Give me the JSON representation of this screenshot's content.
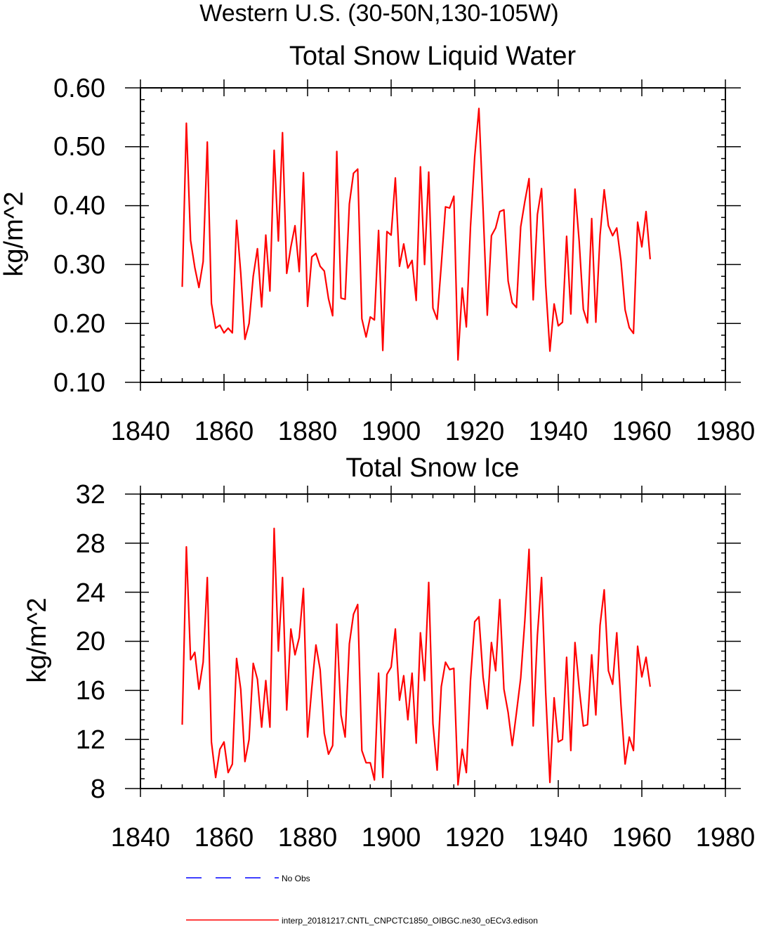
{
  "figure": {
    "main_title": "Western U.S. (30-50N,130-105W)"
  },
  "chart_data": [
    {
      "type": "line",
      "title": "Total Snow Liquid Water",
      "xlabel": "",
      "ylabel": "kg/m^2",
      "xlim": [
        1840,
        1980
      ],
      "ylim": [
        0.1,
        0.6
      ],
      "xticks": [
        1840,
        1860,
        1880,
        1900,
        1920,
        1940,
        1960,
        1980
      ],
      "xtick_labels": [
        "1840",
        "1860",
        "1880",
        "1900",
        "1920",
        "1940",
        "1960",
        "1980"
      ],
      "yticks": [
        0.1,
        0.2,
        0.3,
        0.4,
        0.5,
        0.6
      ],
      "ytick_labels": [
        "0.10",
        "0.20",
        "0.30",
        "0.40",
        "0.50",
        "0.60"
      ],
      "grid": false,
      "series": [
        {
          "name": "interp_20181217.CNTL_CNPCTC1850_OIBGC.ne30_oECv3.edison",
          "color": "#ff0000",
          "x_start": 1850,
          "x_step": 1,
          "values": [
            0.262,
            0.54,
            0.341,
            0.295,
            0.261,
            0.305,
            0.508,
            0.234,
            0.192,
            0.197,
            0.184,
            0.192,
            0.184,
            0.375,
            0.286,
            0.173,
            0.2,
            0.28,
            0.327,
            0.228,
            0.35,
            0.255,
            0.494,
            0.34,
            0.524,
            0.285,
            0.33,
            0.366,
            0.288,
            0.456,
            0.229,
            0.313,
            0.319,
            0.297,
            0.289,
            0.242,
            0.213,
            0.492,
            0.243,
            0.241,
            0.403,
            0.455,
            0.462,
            0.208,
            0.177,
            0.211,
            0.206,
            0.358,
            0.154,
            0.356,
            0.35,
            0.447,
            0.297,
            0.335,
            0.294,
            0.307,
            0.239,
            0.466,
            0.3,
            0.457,
            0.226,
            0.207,
            0.299,
            0.398,
            0.396,
            0.416,
            0.138,
            0.26,
            0.194,
            0.364,
            0.483,
            0.565,
            0.395,
            0.214,
            0.349,
            0.362,
            0.39,
            0.393,
            0.272,
            0.235,
            0.227,
            0.364,
            0.407,
            0.446,
            0.24,
            0.385,
            0.429,
            0.265,
            0.153,
            0.233,
            0.196,
            0.202,
            0.348,
            0.216,
            0.428,
            0.339,
            0.224,
            0.201,
            0.378,
            0.202,
            0.35,
            0.427,
            0.366,
            0.349,
            0.362,
            0.306,
            0.223,
            0.193,
            0.183,
            0.372,
            0.33,
            0.39,
            0.309
          ]
        }
      ]
    },
    {
      "type": "line",
      "title": "Total Snow Ice",
      "xlabel": "",
      "ylabel": "kg/m^2",
      "xlim": [
        1840,
        1980
      ],
      "ylim": [
        8,
        32
      ],
      "xticks": [
        1840,
        1860,
        1880,
        1900,
        1920,
        1940,
        1960,
        1980
      ],
      "xtick_labels": [
        "1840",
        "1860",
        "1880",
        "1900",
        "1920",
        "1940",
        "1960",
        "1980"
      ],
      "yticks": [
        8,
        12,
        16,
        20,
        24,
        28,
        32
      ],
      "ytick_labels": [
        "8",
        "12",
        "16",
        "20",
        "24",
        "28",
        "32"
      ],
      "grid": false,
      "series": [
        {
          "name": "interp_20181217.CNTL_CNPCTC1850_OIBGC.ne30_oECv3.edison",
          "color": "#ff0000",
          "x_start": 1850,
          "x_step": 1,
          "values": [
            13.2,
            27.7,
            18.5,
            19.1,
            16.1,
            18.3,
            25.2,
            11.8,
            8.9,
            11.2,
            11.8,
            9.3,
            10.0,
            18.6,
            16.1,
            10.2,
            12.0,
            18.2,
            16.9,
            13.0,
            16.8,
            13.0,
            29.2,
            19.2,
            25.2,
            14.4,
            21.0,
            18.9,
            20.3,
            24.3,
            12.2,
            16.2,
            19.7,
            17.7,
            12.5,
            10.8,
            11.5,
            21.4,
            14.0,
            12.2,
            19.8,
            22.2,
            23.0,
            11.1,
            10.1,
            10.1,
            8.7,
            17.4,
            8.9,
            17.3,
            17.9,
            21.0,
            15.2,
            17.2,
            13.6,
            17.4,
            11.7,
            20.7,
            16.8,
            24.8,
            13.3,
            9.5,
            16.3,
            18.3,
            17.7,
            17.8,
            8.3,
            11.2,
            9.3,
            16.8,
            21.6,
            22.0,
            17.1,
            14.5,
            19.9,
            17.6,
            23.4,
            16.1,
            14.2,
            11.5,
            14.2,
            17.0,
            21.7,
            27.5,
            13.1,
            20.5,
            25.2,
            15.8,
            8.5,
            15.4,
            11.8,
            12.0,
            18.7,
            11.1,
            19.9,
            16.2,
            13.1,
            13.2,
            18.9,
            14.0,
            21.3,
            24.2,
            17.6,
            16.5,
            20.7,
            14.8,
            10.0,
            12.2,
            11.1,
            19.6,
            17.1,
            18.7,
            16.3
          ]
        }
      ]
    }
  ],
  "legend": {
    "placement": "bottom",
    "items": [
      {
        "label": "No Obs",
        "color": "#0000ff",
        "style": "dashed"
      },
      {
        "label": "interp_20181217.CNTL_CNPCTC1850_OIBGC.ne30_oECv3.edison",
        "color": "#ff0000",
        "style": "solid"
      }
    ]
  }
}
